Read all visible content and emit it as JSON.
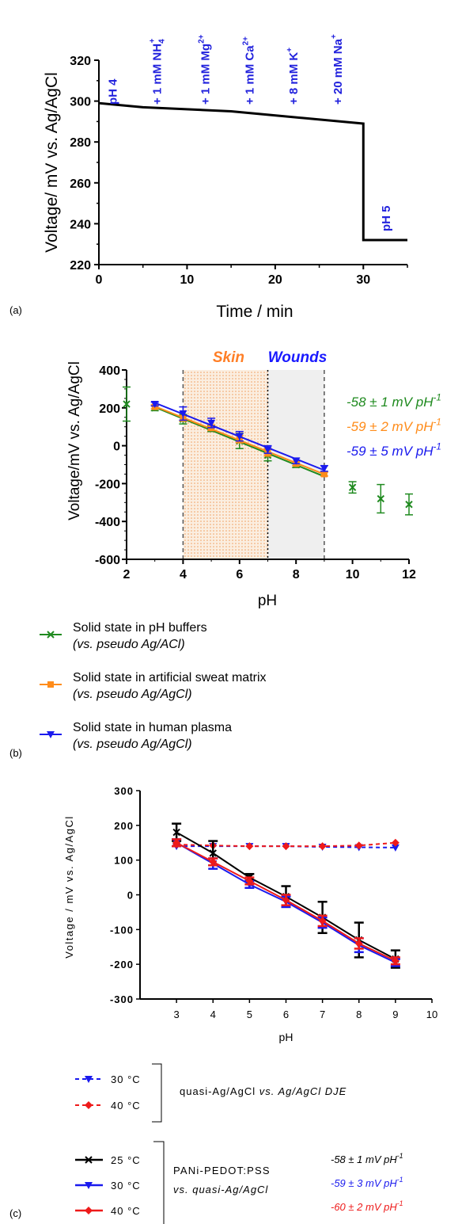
{
  "chart_data": [
    {
      "panel": "(a)",
      "type": "line",
      "xlabel": "Time / min",
      "ylabel": "Voltage/ mV vs. Ag/AgCl",
      "xlim": [
        0,
        35
      ],
      "ylim": [
        220,
        320
      ],
      "xticks": [
        "0",
        "10",
        "20",
        "30"
      ],
      "yticks": [
        "220",
        "240",
        "260",
        "280",
        "300",
        "320"
      ],
      "series": [
        {
          "x": [
            0,
            5,
            15,
            30,
            30,
            35
          ],
          "y": [
            299,
            297,
            295,
            289,
            232,
            232
          ],
          "color": "#000000"
        }
      ],
      "annotations": [
        {
          "t": 1.5,
          "label": "pH 4"
        },
        {
          "t": 6.5,
          "label": "+ 1 mM NH",
          "sub": "4",
          "sup": "+"
        },
        {
          "t": 12,
          "label": "+ 1 mM Mg",
          "sup": "2+"
        },
        {
          "t": 17,
          "label": "+ 1 mM Ca",
          "sup": "2+"
        },
        {
          "t": 22,
          "label": "+ 8 mM K",
          "sup": "+"
        },
        {
          "t": 27,
          "label": "+ 20 mM Na",
          "sup": "+"
        },
        {
          "t": 32.5,
          "label": "pH 5"
        }
      ],
      "annotation_color": "#2222dd"
    },
    {
      "panel": "(b)",
      "type": "scatter",
      "xlabel": "pH",
      "ylabel": "Voltage/mV vs. Ag/AgCl",
      "xlim": [
        2,
        12
      ],
      "ylim": [
        -600,
        400
      ],
      "xticks": [
        "2",
        "4",
        "6",
        "8",
        "10",
        "12"
      ],
      "yticks": [
        "-600",
        "-400",
        "-200",
        "0",
        "200",
        "400"
      ],
      "regions": [
        {
          "label": "Skin",
          "from": 4,
          "to": 7,
          "color": "#ff7f27"
        },
        {
          "label": "Wounds",
          "from": 7,
          "to": 9,
          "color": "#1a1aff"
        }
      ],
      "series": [
        {
          "name": "Solid state in pH buffers",
          "name_sub": "(vs. pseudo Ag/ACl)",
          "color": "#1f8a1f",
          "marker": "x",
          "x": [
            2,
            3,
            4,
            5,
            6,
            7,
            8,
            10,
            11,
            12
          ],
          "y": [
            220,
            200,
            140,
            90,
            25,
            -50,
            -100,
            -220,
            -280,
            -310
          ],
          "err": [
            90,
            15,
            25,
            15,
            40,
            30,
            15,
            30,
            75,
            55
          ],
          "fit": [
            3,
            9
          ],
          "slope_label": "-58 ± 1 mV pH"
        },
        {
          "name": "Solid state in artificial sweat matrix",
          "name_sub": "(vs. pseudo Ag/AgCl)",
          "color": "#ff8c1a",
          "marker": "square",
          "x": [
            3,
            4,
            5,
            6,
            7,
            8,
            9
          ],
          "y": [
            205,
            145,
            95,
            35,
            -35,
            -95,
            -150
          ],
          "err": [
            10,
            15,
            15,
            20,
            20,
            10,
            10
          ],
          "fit": [
            3,
            9
          ],
          "slope_label": "-59 ± 2 mV pH"
        },
        {
          "name": "Solid state in human plasma",
          "name_sub": "(vs. pseudo Ag/AgCl)",
          "color": "#1a1aee",
          "marker": "triangle-down",
          "x": [
            3,
            4,
            5,
            6,
            7,
            8,
            9
          ],
          "y": [
            220,
            170,
            120,
            50,
            -20,
            -80,
            -120
          ],
          "err": [
            10,
            35,
            25,
            25,
            20,
            15,
            15
          ],
          "fit": [
            3,
            9
          ],
          "slope_label": "-59 ± 5 mV pH"
        }
      ]
    },
    {
      "panel": "(c)",
      "type": "line",
      "xlabel": "pH",
      "ylabel": "Voltage / mV vs. Ag/AgCl",
      "xlim": [
        2,
        10
      ],
      "ylim": [
        -300,
        300
      ],
      "xticks": [
        "3",
        "4",
        "5",
        "6",
        "7",
        "8",
        "9",
        "10"
      ],
      "yticks": [
        "-300",
        "-200",
        "-100",
        "0",
        "100",
        "200",
        "300"
      ],
      "series": [
        {
          "name": "30 °C",
          "group": "quasi",
          "color": "#1a1aee",
          "dashed": true,
          "marker": "triangle-down",
          "x": [
            3,
            4,
            5,
            6,
            7,
            8,
            9
          ],
          "y": [
            140,
            140,
            140,
            140,
            138,
            137,
            136
          ],
          "err": [
            0,
            0,
            0,
            0,
            0,
            0,
            0
          ]
        },
        {
          "name": "40 °C",
          "group": "quasi",
          "color": "#ee1a1a",
          "dashed": true,
          "marker": "diamond",
          "x": [
            3,
            4,
            5,
            6,
            7,
            8,
            9
          ],
          "y": [
            145,
            142,
            140,
            140,
            140,
            142,
            150
          ],
          "err": [
            0,
            0,
            0,
            0,
            0,
            0,
            0
          ]
        },
        {
          "name": "25 °C",
          "group": "pani",
          "color": "#000000",
          "dashed": false,
          "marker": "x",
          "x": [
            3,
            4,
            5,
            6,
            7,
            8,
            9
          ],
          "y": [
            180,
            120,
            50,
            -5,
            -65,
            -130,
            -185
          ],
          "err": [
            25,
            35,
            10,
            30,
            45,
            50,
            25
          ]
        },
        {
          "name": "30 °C",
          "group": "pani",
          "color": "#1a1aee",
          "dashed": false,
          "marker": "triangle-down",
          "x": [
            3,
            4,
            5,
            6,
            7,
            8,
            9
          ],
          "y": [
            150,
            90,
            30,
            -20,
            -80,
            -145,
            -195
          ],
          "err": [
            10,
            15,
            10,
            15,
            15,
            20,
            10
          ]
        },
        {
          "name": "40 °C",
          "group": "pani",
          "color": "#ee1a1a",
          "dashed": false,
          "marker": "diamond",
          "x": [
            3,
            4,
            5,
            6,
            7,
            8,
            9
          ],
          "y": [
            150,
            95,
            40,
            -15,
            -75,
            -140,
            -190
          ],
          "err": [
            10,
            10,
            10,
            15,
            15,
            15,
            10
          ]
        }
      ],
      "legend_quasi_label": "quasi-Ag/AgCl",
      "legend_quasi_label_italic": "vs. Ag/AgCl DJE",
      "legend_pani_label_1": "PANi-PEDOT:PSS",
      "legend_pani_label_2": "vs. quasi-Ag/AgCl",
      "slopes": [
        {
          "text": "-58 ± 1 mV pH",
          "color": "#000000"
        },
        {
          "text": "-59 ± 3 mV pH",
          "color": "#1a1aee"
        },
        {
          "text": "-60 ± 2 mV pH",
          "color": "#ee1a1a"
        }
      ]
    }
  ],
  "labels": {
    "a": "(a)",
    "b": "(b)",
    "c": "(c)",
    "slope_sup": "-1"
  }
}
